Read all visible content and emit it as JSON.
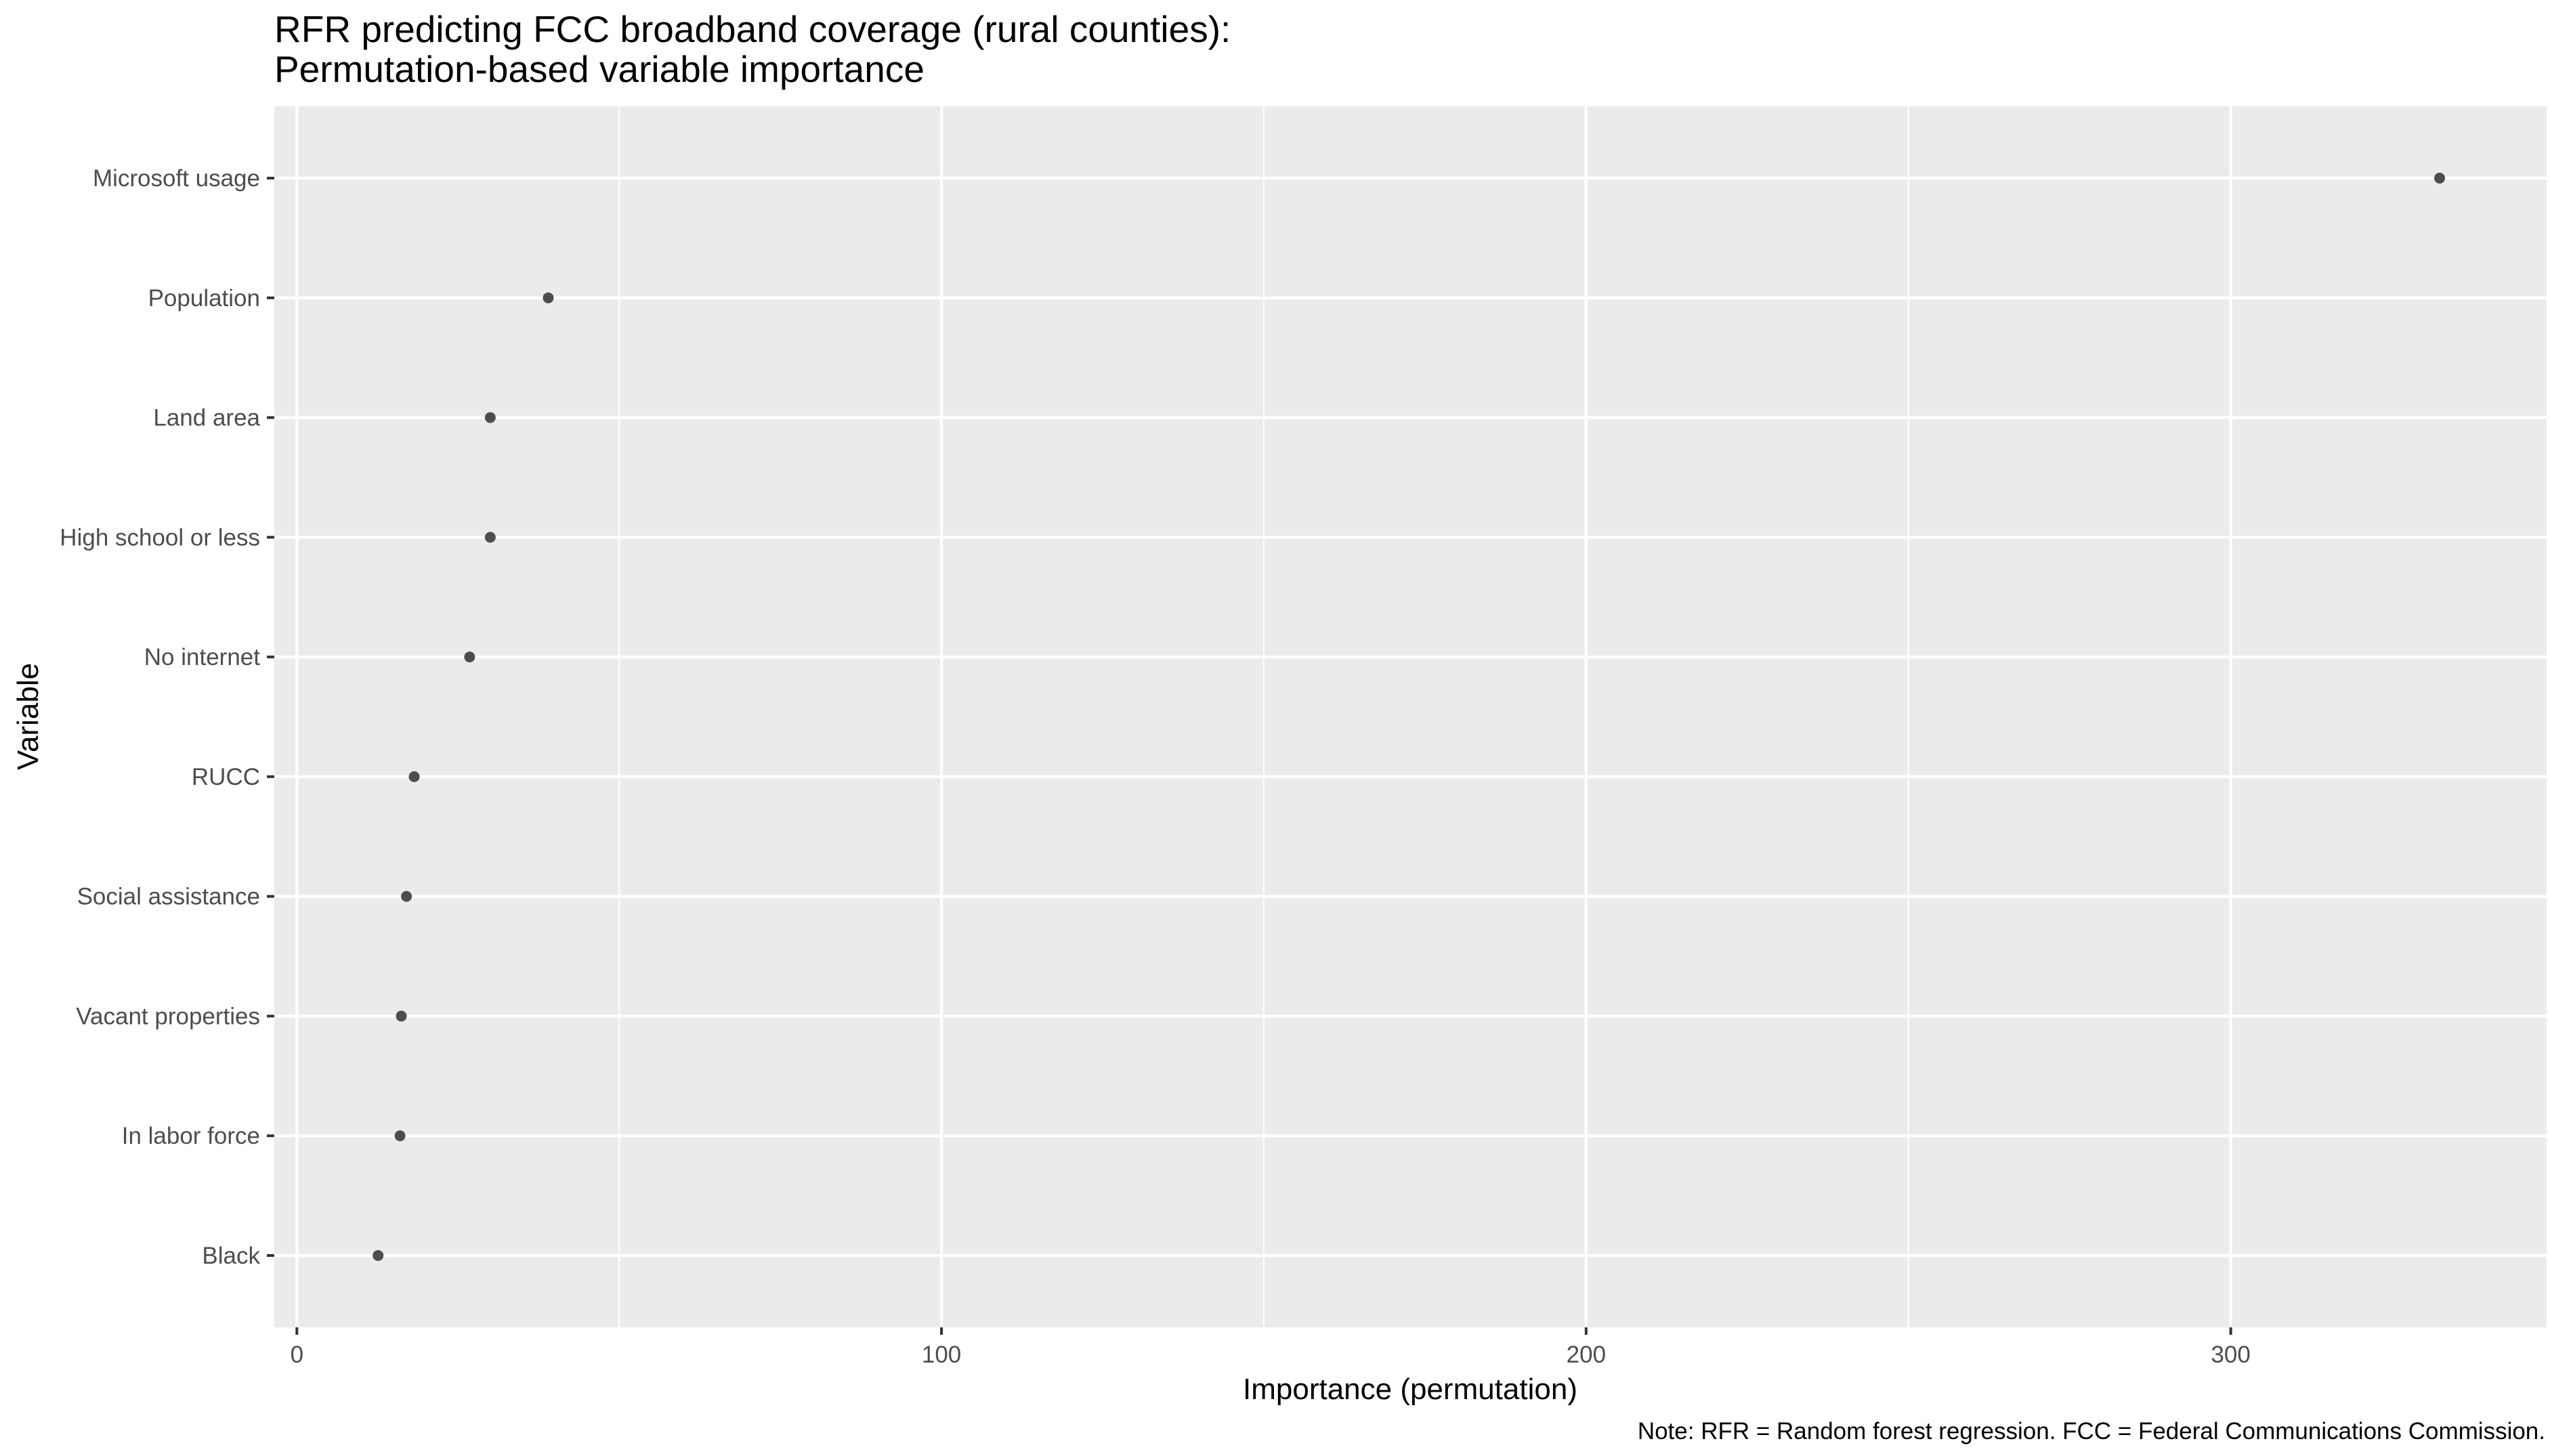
{
  "chart_data": {
    "type": "scatter",
    "title": [
      "RFR predicting FCC broadband coverage (rural counties):",
      "Permutation-based variable importance"
    ],
    "xlabel": "Importance (permutation)",
    "ylabel": "Variable",
    "caption": "Note: RFR = Random forest regression. FCC = Federal Communications Commission.",
    "xlim": [
      -3.5,
      349
    ],
    "x_ticks": [
      0,
      100,
      200,
      300
    ],
    "x_minor": [
      50,
      150,
      250
    ],
    "grid": true,
    "categories": [
      "Microsoft usage",
      "Population",
      "Land area",
      "High school or less",
      "No internet",
      "RUCC",
      "Social assistance",
      "Vacant properties",
      "In labor force",
      "Black"
    ],
    "values": [
      332.4,
      39.0,
      30.0,
      30.0,
      26.8,
      18.2,
      17.0,
      16.2,
      16.0,
      12.6
    ],
    "colors": {
      "panel": "#ebebeb",
      "grid": "#ffffff",
      "point": "#4d4d4d",
      "tick": "#333333"
    }
  }
}
